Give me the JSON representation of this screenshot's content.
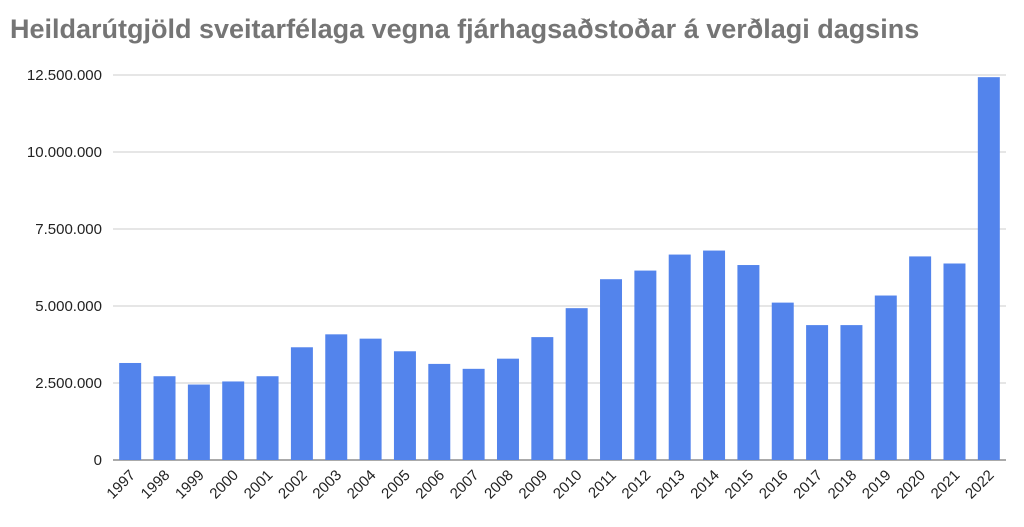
{
  "chart_data": {
    "type": "bar",
    "title": "Heildarútgjöld sveitarfélaga vegna fjárhagsaðstoðar á verðlagi dagsins",
    "xlabel": "",
    "ylabel": "",
    "categories": [
      "1997",
      "1998",
      "1999",
      "2000",
      "2001",
      "2002",
      "2003",
      "2004",
      "2005",
      "2006",
      "2007",
      "2008",
      "2009",
      "2010",
      "2011",
      "2012",
      "2013",
      "2014",
      "2015",
      "2016",
      "2017",
      "2018",
      "2019",
      "2020",
      "2021",
      "2022"
    ],
    "values": [
      3150000,
      2720000,
      2450000,
      2550000,
      2720000,
      3660000,
      4080000,
      3940000,
      3530000,
      3120000,
      2960000,
      3290000,
      3990000,
      4930000,
      5870000,
      6150000,
      6670000,
      6800000,
      6330000,
      5110000,
      4380000,
      4380000,
      5340000,
      6610000,
      6380000,
      12430000
    ],
    "ylim": [
      0,
      12500000
    ],
    "y_ticks": [
      0,
      2500000,
      5000000,
      7500000,
      10000000,
      12500000
    ],
    "y_tick_labels": [
      "0",
      "2.500.000",
      "5.000.000",
      "7.500.000",
      "10.000.000",
      "12.500.000"
    ],
    "grid": true,
    "legend": "none",
    "colors": {
      "bar": "#5384ec",
      "grid": "#cccccc",
      "title": "#757575"
    }
  }
}
